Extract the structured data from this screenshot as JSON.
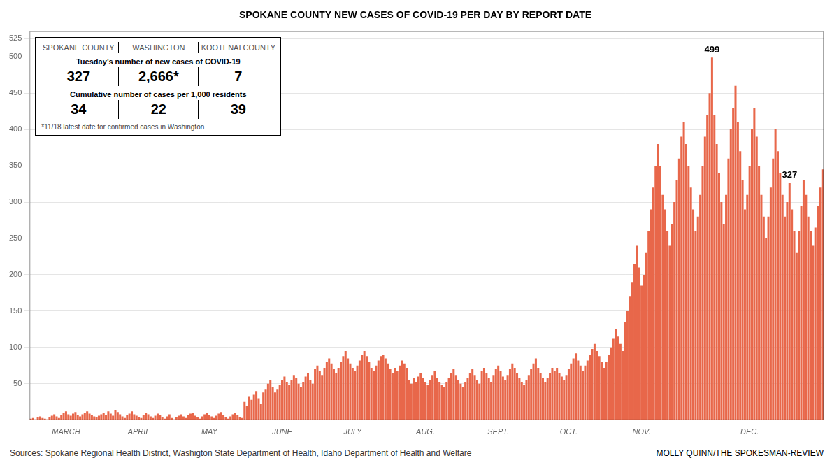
{
  "chart_data": {
    "type": "bar",
    "title": "SPOKANE COUNTY NEW CASES OF COVID-19 PER DAY BY REPORT DATE",
    "categories": [
      null,
      null,
      null,
      null,
      null,
      null,
      null,
      null,
      null,
      null,
      null,
      null,
      null,
      null,
      null,
      "MARCH",
      null,
      null,
      null,
      null,
      null,
      null,
      null,
      null,
      null,
      null,
      null,
      null,
      null,
      null,
      null,
      null,
      null,
      null,
      null,
      null,
      null,
      null,
      null,
      null,
      null,
      null,
      null,
      null,
      null,
      null,
      "APRIL",
      null,
      null,
      null,
      null,
      null,
      null,
      null,
      null,
      null,
      null,
      null,
      null,
      null,
      null,
      null,
      null,
      null,
      null,
      null,
      null,
      null,
      null,
      null,
      null,
      null,
      null,
      null,
      null,
      null,
      "MAY",
      null,
      null,
      null,
      null,
      null,
      null,
      null,
      null,
      null,
      null,
      null,
      null,
      null,
      null,
      null,
      null,
      null,
      null,
      null,
      null,
      null,
      null,
      null,
      null,
      null,
      null,
      null,
      null,
      null,
      null,
      "JUNE",
      null,
      null,
      null,
      null,
      null,
      null,
      null,
      null,
      null,
      null,
      null,
      null,
      null,
      null,
      null,
      null,
      null,
      null,
      null,
      null,
      null,
      null,
      null,
      null,
      null,
      null,
      null,
      null,
      null,
      "JULY",
      null,
      null,
      null,
      null,
      null,
      null,
      null,
      null,
      null,
      null,
      null,
      null,
      null,
      null,
      null,
      null,
      null,
      null,
      null,
      null,
      null,
      null,
      null,
      null,
      null,
      null,
      null,
      null,
      null,
      null,
      "AUG.",
      null,
      null,
      null,
      null,
      null,
      null,
      null,
      null,
      null,
      null,
      null,
      null,
      null,
      null,
      null,
      null,
      null,
      null,
      null,
      null,
      null,
      null,
      null,
      null,
      null,
      null,
      null,
      null,
      null,
      null,
      "SEPT.",
      null,
      null,
      null,
      null,
      null,
      null,
      null,
      null,
      null,
      null,
      null,
      null,
      null,
      null,
      null,
      null,
      null,
      null,
      null,
      null,
      null,
      null,
      null,
      null,
      null,
      null,
      null,
      null,
      null,
      "OCT.",
      null,
      null,
      null,
      null,
      null,
      null,
      null,
      null,
      null,
      null,
      null,
      null,
      null,
      null,
      null,
      null,
      null,
      null,
      null,
      null,
      null,
      null,
      null,
      null,
      null,
      null,
      null,
      null,
      null,
      null,
      "NOV.",
      null,
      null,
      null,
      null,
      null,
      null,
      null,
      null,
      null,
      null,
      null,
      null,
      null,
      null,
      null,
      null,
      null,
      null,
      null,
      null,
      null,
      null,
      null,
      null,
      null,
      null,
      null,
      null,
      null,
      null,
      null,
      null,
      null,
      null,
      null,
      null,
      null,
      null,
      null,
      null,
      null,
      null,
      null,
      null,
      null,
      "DEC.",
      null,
      null,
      null,
      null,
      null,
      null,
      null,
      null,
      null,
      null,
      null,
      null,
      null,
      null,
      null,
      null,
      null,
      null,
      null,
      null,
      null,
      null,
      null,
      null,
      null,
      null,
      null,
      null,
      null,
      null,
      null
    ],
    "values": [
      2,
      3,
      1,
      4,
      5,
      3,
      2,
      1,
      4,
      6,
      8,
      5,
      3,
      7,
      10,
      12,
      8,
      6,
      9,
      11,
      7,
      5,
      8,
      10,
      12,
      9,
      7,
      5,
      4,
      6,
      8,
      10,
      7,
      12,
      9,
      6,
      14,
      11,
      8,
      5,
      3,
      7,
      9,
      12,
      8,
      6,
      4,
      3,
      7,
      10,
      8,
      5,
      3,
      6,
      9,
      7,
      4,
      2,
      5,
      8,
      3,
      1,
      4,
      6,
      8,
      5,
      3,
      7,
      9,
      10,
      6,
      4,
      2,
      5,
      8,
      10,
      7,
      5,
      3,
      6,
      9,
      11,
      7,
      4,
      2,
      5,
      8,
      10,
      7,
      4,
      3,
      25,
      20,
      32,
      28,
      35,
      40,
      30,
      22,
      38,
      42,
      50,
      55,
      45,
      38,
      42,
      48,
      55,
      60,
      52,
      48,
      55,
      62,
      58,
      50,
      45,
      52,
      60,
      65,
      55,
      50,
      70,
      75,
      68,
      62,
      72,
      80,
      85,
      78,
      70,
      65,
      72,
      80,
      88,
      95,
      85,
      78,
      72,
      68,
      75,
      82,
      90,
      95,
      88,
      80,
      72,
      68,
      75,
      82,
      88,
      90,
      85,
      78,
      70,
      65,
      72,
      68,
      75,
      82,
      78,
      72,
      55,
      50,
      58,
      52,
      60,
      65,
      58,
      52,
      48,
      55,
      62,
      68,
      58,
      52,
      48,
      45,
      52,
      58,
      65,
      70,
      62,
      55,
      50,
      45,
      52,
      58,
      65,
      70,
      62,
      55,
      50,
      68,
      72,
      65,
      58,
      52,
      62,
      70,
      75,
      68,
      60,
      55,
      62,
      70,
      78,
      72,
      65,
      58,
      52,
      48,
      55,
      62,
      70,
      78,
      85,
      72,
      65,
      58,
      52,
      58,
      65,
      72,
      68,
      72,
      65,
      60,
      55,
      62,
      70,
      78,
      85,
      92,
      82,
      75,
      68,
      75,
      82,
      90,
      98,
      105,
      95,
      88,
      80,
      72,
      80,
      90,
      100,
      112,
      125,
      115,
      105,
      95,
      135,
      150,
      170,
      190,
      215,
      240,
      210,
      185,
      200,
      230,
      260,
      290,
      320,
      350,
      380,
      350,
      310,
      290,
      260,
      240,
      270,
      300,
      330,
      360,
      390,
      410,
      380,
      350,
      320,
      290,
      260,
      280,
      310,
      350,
      390,
      420,
      450,
      499,
      420,
      380,
      340,
      300,
      270,
      310,
      360,
      400,
      430,
      460,
      410,
      370,
      330,
      290,
      310,
      350,
      400,
      430,
      390,
      350,
      310,
      280,
      250,
      280,
      320,
      360,
      400,
      370,
      340,
      310,
      280,
      300,
      327,
      290,
      260,
      230,
      260,
      295,
      330,
      310,
      280,
      260,
      240,
      265,
      295,
      320,
      345
    ],
    "color": "#E8674A",
    "ylim": [
      0,
      535
    ],
    "yticks": [
      50,
      100,
      150,
      200,
      250,
      300,
      350,
      400,
      450,
      500,
      525
    ],
    "grid": true,
    "annotations": [
      {
        "text": "499",
        "value": 499
      },
      {
        "text": "327",
        "value": 327
      }
    ],
    "source_text": "Sources: Spokane Regional Health District, Washigton State Department of Health, Idaho Department of Health and Welfare",
    "credit_text": "MOLLY QUINN/THE SPOKESMAN-REVIEW",
    "info_box": {
      "headers": [
        "SPOKANE COUNTY",
        "WASHINGTON",
        "KOOTENAI COUNTY"
      ],
      "rows": [
        {
          "label": "Tuesday’s number of new cases of COVID-19",
          "values": [
            "327",
            "2,666*",
            "7"
          ]
        },
        {
          "label": "Cumulative number of cases per 1,000 residents",
          "values": [
            "34",
            "22",
            "39"
          ]
        }
      ],
      "footnote": "*11/18 latest date for confirmed cases in Washington"
    }
  }
}
